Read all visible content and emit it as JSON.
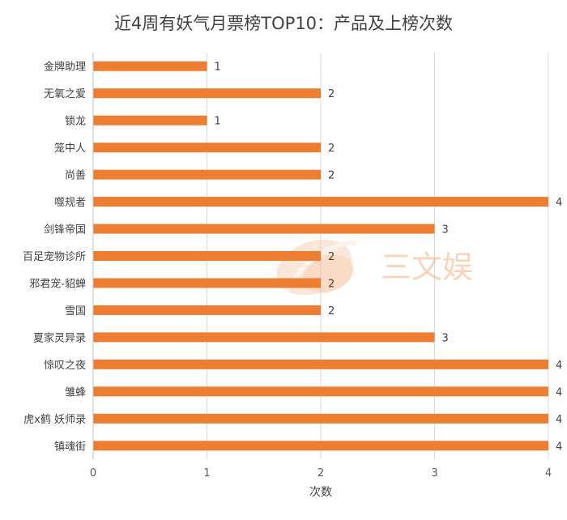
{
  "chart_data": {
    "type": "bar",
    "orientation": "horizontal",
    "title": "近4周有妖气月票榜TOP10：产品及上榜次数",
    "xlabel": "次数",
    "ylabel": "",
    "xlim": [
      0,
      4
    ],
    "x_ticks": [
      "0",
      "1",
      "2",
      "3",
      "4"
    ],
    "grid": "vertical",
    "legend": "none",
    "bar_color": "#ed7d31",
    "categories": [
      "金牌助理",
      "无氧之爱",
      "锁龙",
      "笼中人",
      "尚善",
      "噬规者",
      "剑锋帝国",
      "百足宠物诊所",
      "邪君宠-貂蝉",
      "雪国",
      "夏家灵异录",
      "惊叹之夜",
      "雏蜂",
      "虎x鹤 妖师录",
      "镇魂街"
    ],
    "values": [
      1,
      2,
      1,
      2,
      2,
      4,
      3,
      2,
      2,
      2,
      3,
      4,
      4,
      4,
      4
    ],
    "data_labels": [
      "1",
      "2",
      "1",
      "2",
      "2",
      "4",
      "3",
      "2",
      "2",
      "2",
      "3",
      "4",
      "4",
      "4",
      "4"
    ]
  },
  "watermark": {
    "text": "三文娱",
    "color": "#f4b183"
  }
}
